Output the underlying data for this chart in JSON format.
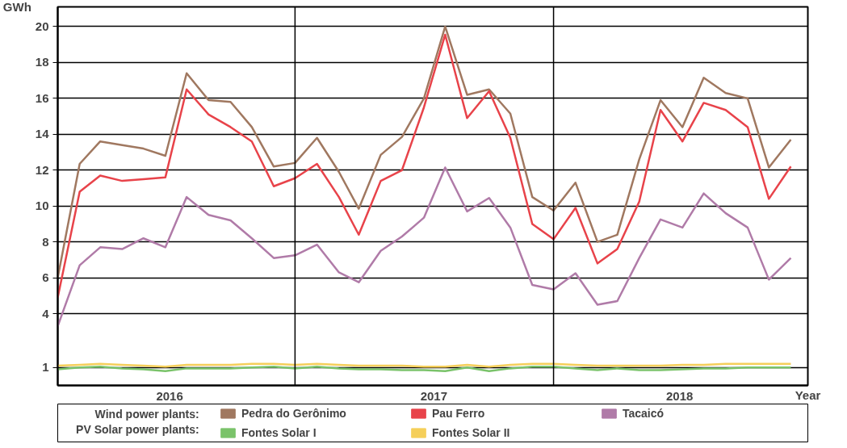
{
  "chart_data": {
    "type": "line",
    "ylabel": "GWh",
    "xlabel": "Year",
    "x": [
      "2016-01",
      "2016-02",
      "2016-03",
      "2016-04",
      "2016-05",
      "2016-06",
      "2016-07",
      "2016-08",
      "2016-09",
      "2016-10",
      "2016-11",
      "2016-12",
      "2017-01",
      "2017-02",
      "2017-03",
      "2017-04",
      "2017-05",
      "2017-06",
      "2017-07",
      "2017-08",
      "2017-09",
      "2017-10",
      "2017-11",
      "2017-12",
      "2018-01",
      "2018-02",
      "2018-03",
      "2018-04",
      "2018-05",
      "2018-06",
      "2018-07",
      "2018-08",
      "2018-09",
      "2018-10",
      "2018-11"
    ],
    "series": [
      {
        "name": "Pedra do Gerônimo",
        "color": "#a07860",
        "values": [
          6.0,
          12.35,
          13.6,
          13.4,
          13.2,
          12.8,
          17.4,
          15.9,
          15.8,
          14.4,
          12.2,
          12.4,
          13.8,
          11.9,
          9.85,
          12.85,
          13.85,
          16.0,
          20.0,
          16.2,
          16.5,
          15.15,
          10.5,
          9.75,
          11.3,
          8.0,
          8.4,
          12.6,
          15.9,
          14.4,
          17.15,
          16.3,
          16.0,
          12.15,
          13.7
        ]
      },
      {
        "name": "Pau Ferro",
        "color": "#e8434a",
        "values": [
          4.9,
          10.8,
          11.7,
          11.4,
          11.5,
          11.6,
          16.5,
          15.1,
          14.4,
          13.6,
          11.1,
          11.55,
          12.35,
          10.5,
          8.4,
          11.4,
          12.0,
          15.5,
          19.55,
          14.9,
          16.4,
          13.8,
          9.0,
          8.15,
          9.9,
          6.8,
          7.6,
          10.25,
          15.35,
          13.6,
          15.75,
          15.35,
          14.4,
          10.4,
          12.2
        ]
      },
      {
        "name": "Tacaicó",
        "color": "#b07ba8",
        "values": [
          3.3,
          6.7,
          7.7,
          7.6,
          8.2,
          7.7,
          10.5,
          9.5,
          9.2,
          8.2,
          7.1,
          7.25,
          7.85,
          6.3,
          5.75,
          7.5,
          8.3,
          9.35,
          12.15,
          9.7,
          10.45,
          8.8,
          5.6,
          5.35,
          6.25,
          4.5,
          4.7,
          7.1,
          9.25,
          8.8,
          10.7,
          9.6,
          8.8,
          5.9,
          7.1
        ]
      },
      {
        "name": "Fontes Solar I",
        "color": "#7ac36a",
        "values": [
          0.9,
          1.0,
          1.05,
          0.95,
          0.9,
          0.8,
          0.95,
          0.95,
          0.95,
          1.0,
          1.05,
          0.95,
          1.05,
          0.95,
          0.9,
          0.9,
          0.85,
          0.85,
          0.8,
          1.0,
          0.8,
          0.95,
          1.05,
          1.05,
          0.95,
          0.85,
          0.95,
          0.85,
          0.85,
          0.9,
          0.95,
          0.95,
          1.0,
          1.0,
          1.0
        ]
      },
      {
        "name": "Fontes Solar II",
        "color": "#f5cf5a",
        "values": [
          1.1,
          1.15,
          1.2,
          1.15,
          1.1,
          1.05,
          1.15,
          1.15,
          1.15,
          1.2,
          1.2,
          1.15,
          1.2,
          1.15,
          1.1,
          1.1,
          1.1,
          1.05,
          1.05,
          1.15,
          1.05,
          1.15,
          1.2,
          1.2,
          1.15,
          1.1,
          1.1,
          1.1,
          1.1,
          1.15,
          1.15,
          1.2,
          1.2,
          1.2,
          1.2
        ]
      }
    ],
    "annotations": [
      "Wind power plants:",
      "PV Solar power plants:"
    ],
    "xlim": [
      "2016-01-01",
      "2018-11-25"
    ],
    "xticks": [
      {
        "value": "2016-06-07",
        "label": "2016"
      },
      {
        "value": "2017-06-15",
        "label": "2017"
      },
      {
        "value": "2018-05-28",
        "label": "2018"
      }
    ],
    "ylim": [
      0,
      21.1
    ],
    "yticks": [
      1,
      4,
      6,
      8,
      10,
      12,
      14,
      16,
      18,
      20
    ],
    "ref_lines": [
      {
        "axis": "x",
        "value": "2016-12"
      },
      {
        "axis": "x",
        "value": "2017-12"
      }
    ],
    "grid": "y",
    "legend": "bottom",
    "line_style": "solid",
    "marker": "none"
  }
}
